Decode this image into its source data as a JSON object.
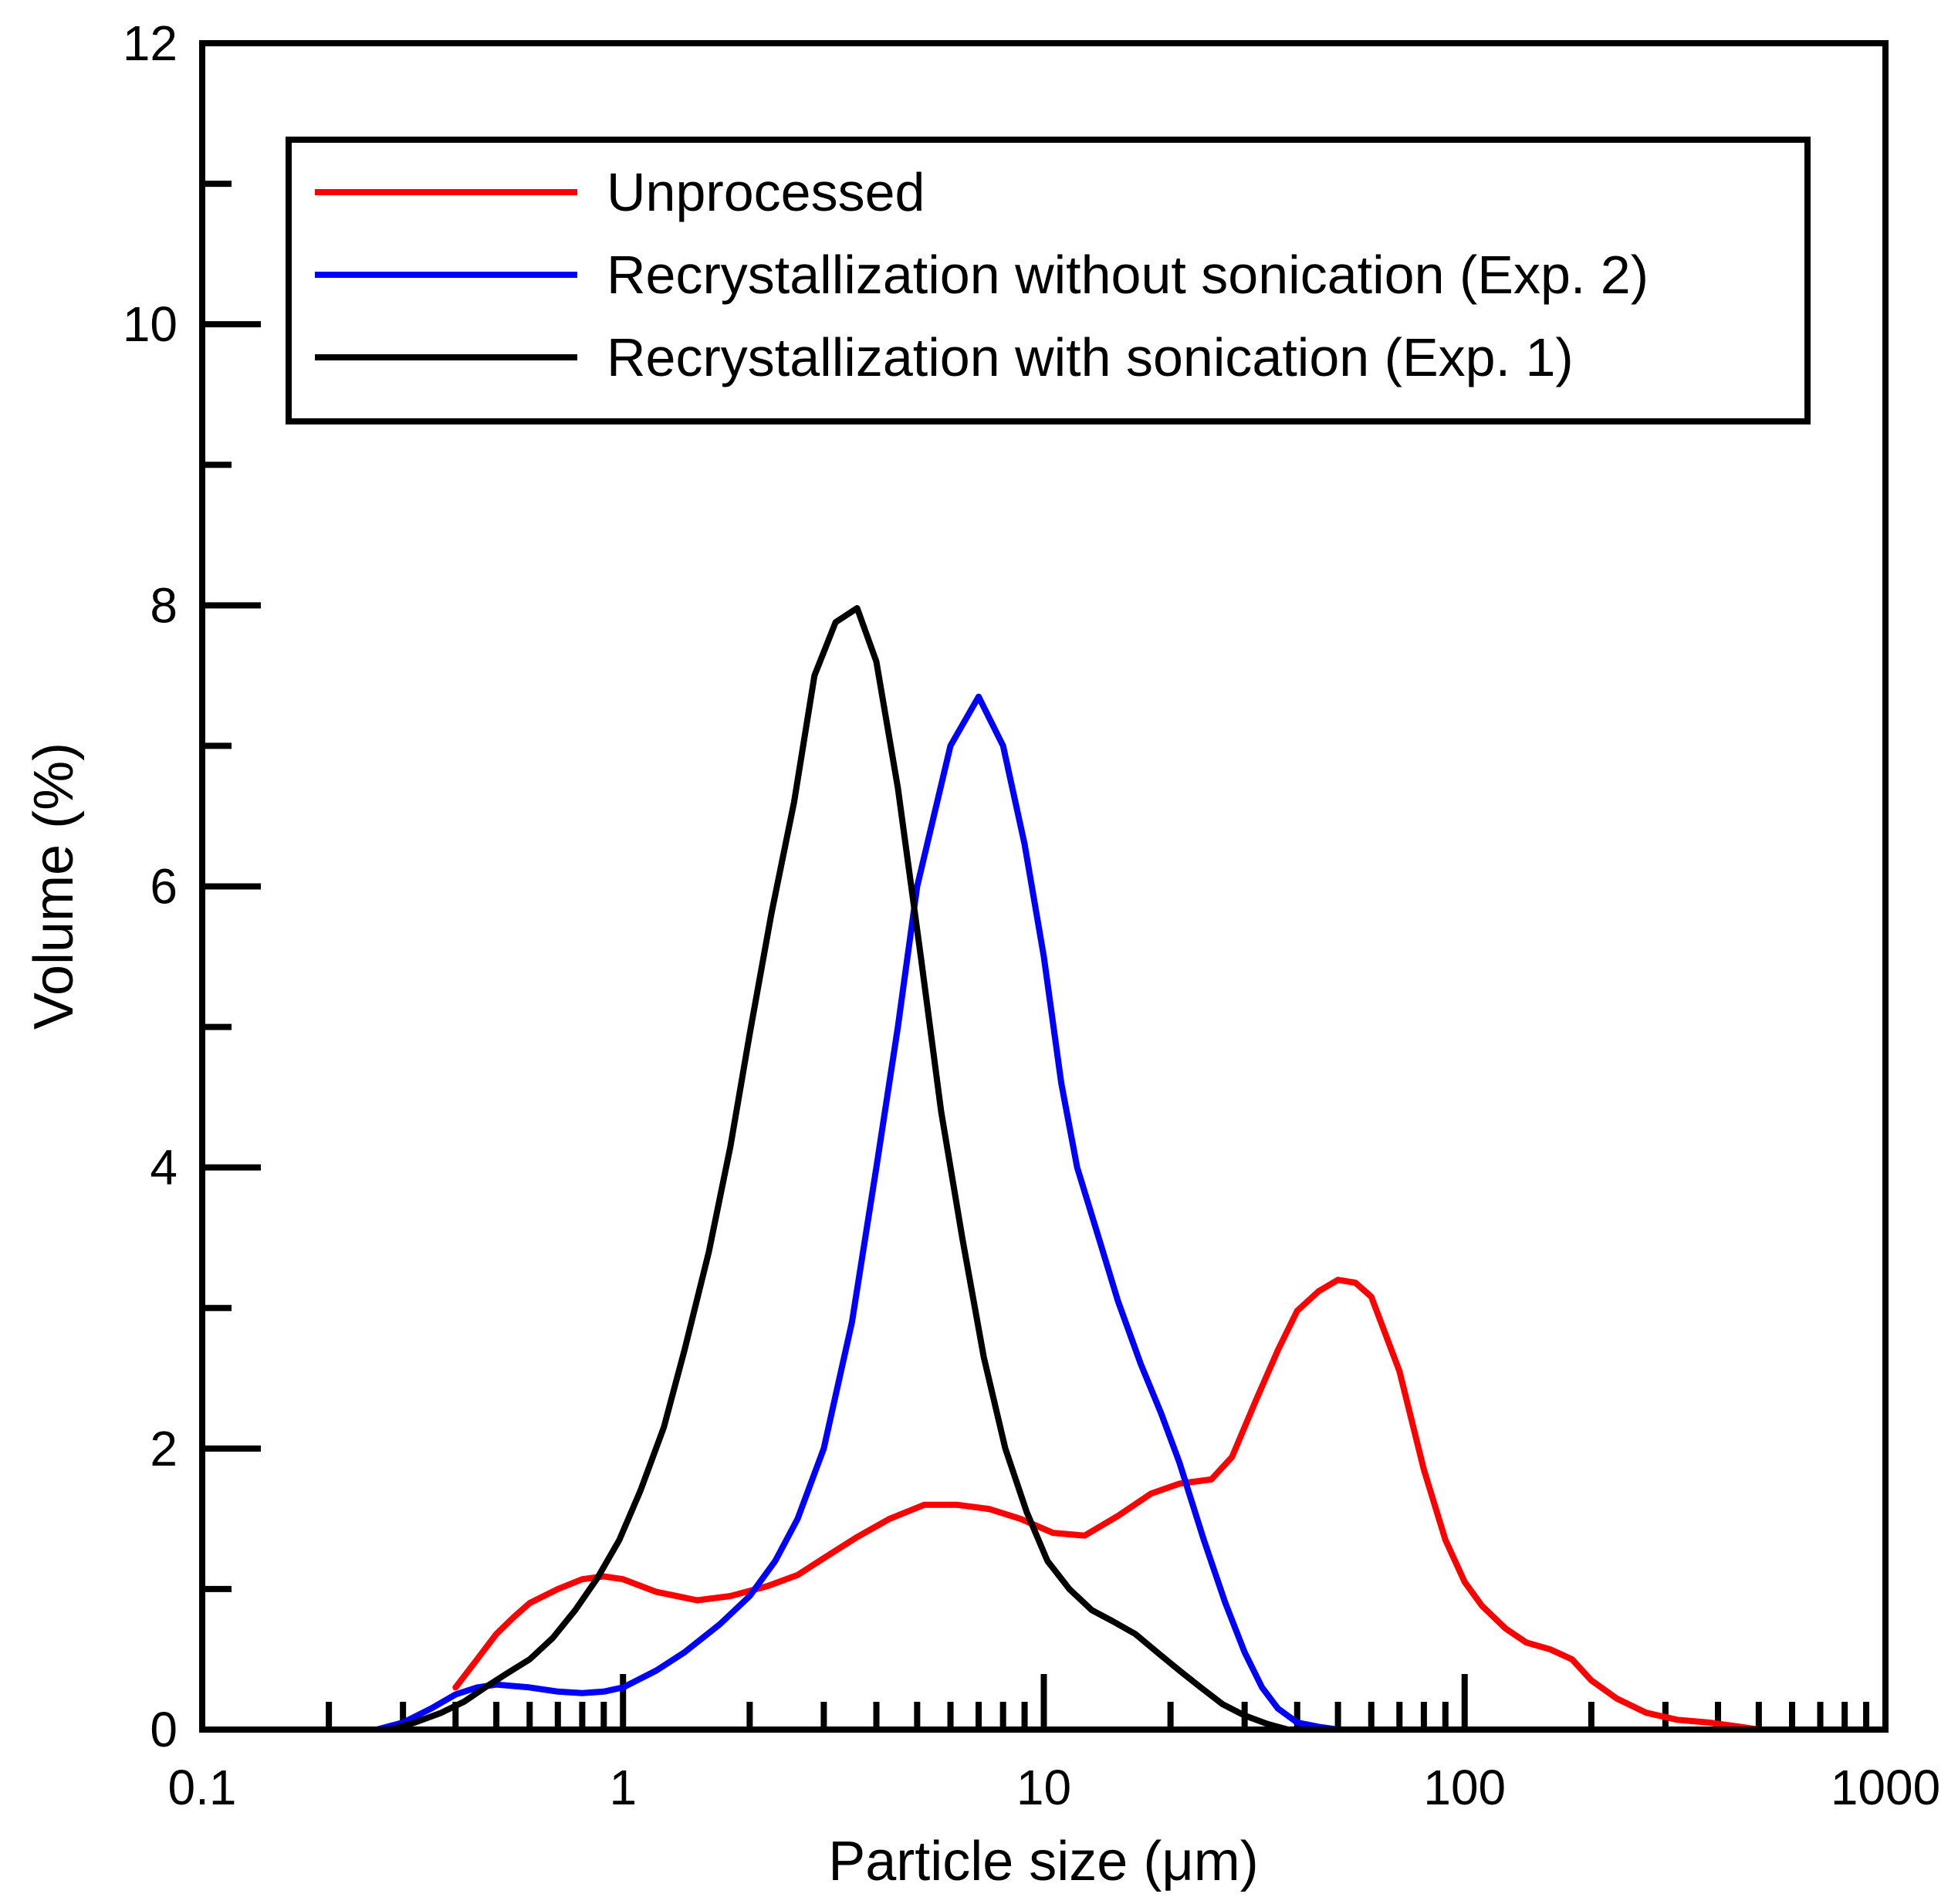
{
  "chart_data": {
    "type": "line",
    "title": "",
    "xlabel": "Particle size (μm)",
    "ylabel": "Volume (%)",
    "xscale": "log",
    "xlim": [
      0.1,
      1000
    ],
    "ylim": [
      0,
      12
    ],
    "x_tick_labels": [
      "0.1",
      "1",
      "10",
      "100",
      "1000"
    ],
    "y_tick_labels": [
      "0",
      "2",
      "4",
      "6",
      "8",
      "10",
      "12"
    ],
    "legend_position": "top",
    "series": [
      {
        "name": "Unprocessed",
        "color": "#ff0000",
        "x": [
          0.4,
          0.45,
          0.5,
          0.55,
          0.6,
          0.7,
          0.8,
          0.9,
          1.0,
          1.2,
          1.5,
          1.8,
          2.2,
          2.6,
          3.0,
          3.6,
          4.3,
          5.2,
          6.2,
          7.4,
          8.8,
          10.5,
          12.5,
          15,
          18,
          21,
          25,
          28,
          32,
          36,
          40,
          45,
          50,
          55,
          60,
          70,
          80,
          90,
          100,
          110,
          125,
          140,
          160,
          180,
          200,
          230,
          270,
          320,
          380,
          450,
          500
        ],
        "y": [
          0.3,
          0.5,
          0.68,
          0.8,
          0.9,
          1.0,
          1.07,
          1.09,
          1.07,
          0.98,
          0.92,
          0.95,
          1.02,
          1.1,
          1.22,
          1.37,
          1.5,
          1.6,
          1.6,
          1.57,
          1.5,
          1.4,
          1.38,
          1.52,
          1.68,
          1.75,
          1.78,
          1.94,
          2.35,
          2.7,
          2.98,
          3.12,
          3.2,
          3.18,
          3.08,
          2.55,
          1.85,
          1.35,
          1.05,
          0.88,
          0.72,
          0.62,
          0.57,
          0.5,
          0.35,
          0.22,
          0.12,
          0.07,
          0.05,
          0.02,
          0.0
        ]
      },
      {
        "name": "Recrystallization without sonication (Exp. 2)",
        "color": "#0000ff",
        "x": [
          0.26,
          0.3,
          0.35,
          0.4,
          0.45,
          0.5,
          0.6,
          0.7,
          0.8,
          0.9,
          1.0,
          1.2,
          1.4,
          1.7,
          2.0,
          2.3,
          2.6,
          3.0,
          3.5,
          4.0,
          4.5,
          5.0,
          6.0,
          7.0,
          8.0,
          9.0,
          10.0,
          11.0,
          12.0,
          13.5,
          15,
          17,
          19,
          21,
          24,
          27,
          30,
          33,
          36,
          40,
          45,
          50
        ],
        "y": [
          0.0,
          0.05,
          0.15,
          0.25,
          0.3,
          0.32,
          0.3,
          0.27,
          0.26,
          0.27,
          0.3,
          0.42,
          0.55,
          0.75,
          0.95,
          1.2,
          1.5,
          2.0,
          2.9,
          4.0,
          5.0,
          6.0,
          7.0,
          7.35,
          7.0,
          6.3,
          5.5,
          4.6,
          4.0,
          3.5,
          3.05,
          2.6,
          2.25,
          1.9,
          1.35,
          0.9,
          0.55,
          0.3,
          0.15,
          0.05,
          0.02,
          0.0
        ]
      },
      {
        "name": "Recrystallization with sonication (Exp. 1)",
        "color": "#000000",
        "x": [
          0.28,
          0.32,
          0.37,
          0.42,
          0.47,
          0.53,
          0.6,
          0.68,
          0.77,
          0.87,
          0.98,
          1.1,
          1.25,
          1.4,
          1.6,
          1.8,
          2.0,
          2.25,
          2.55,
          2.85,
          3.2,
          3.6,
          4.0,
          4.5,
          5.1,
          5.7,
          6.4,
          7.2,
          8.1,
          9.1,
          10.2,
          11.5,
          13,
          14.6,
          16.5,
          18.6,
          21,
          23.6,
          26.6,
          30,
          34,
          38
        ],
        "y": [
          0.0,
          0.05,
          0.12,
          0.2,
          0.3,
          0.4,
          0.5,
          0.65,
          0.85,
          1.08,
          1.35,
          1.7,
          2.15,
          2.7,
          3.4,
          4.15,
          4.95,
          5.8,
          6.6,
          7.5,
          7.88,
          7.98,
          7.6,
          6.7,
          5.5,
          4.4,
          3.5,
          2.65,
          2.0,
          1.55,
          1.2,
          1.0,
          0.85,
          0.77,
          0.68,
          0.55,
          0.42,
          0.3,
          0.18,
          0.1,
          0.04,
          0.0
        ]
      }
    ]
  }
}
